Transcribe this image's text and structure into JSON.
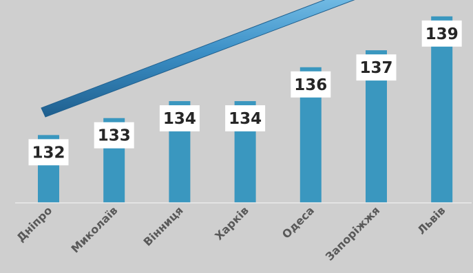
{
  "chart_data": {
    "type": "bar",
    "categories": [
      "Дніпро",
      "Миколаїв",
      "Вінниця",
      "Харків",
      "Одеса",
      "Запоріжжя",
      "Львів"
    ],
    "values": [
      132,
      133,
      134,
      134,
      136,
      137,
      139
    ],
    "data_labels": [
      "132",
      "133",
      "134",
      "134",
      "136",
      "137",
      "139"
    ],
    "title": "",
    "xlabel": "",
    "ylabel": "",
    "ylim": [
      128,
      139.6
    ],
    "grid": false,
    "trend_arrow": true,
    "colors": {
      "background": "#cfcfcf",
      "bar": "#3a97bf",
      "arrow": "#3b8fc6",
      "label_box": "#ffffff",
      "label_text": "#262626",
      "category_text": "#595959",
      "axis": "#ececec"
    }
  }
}
